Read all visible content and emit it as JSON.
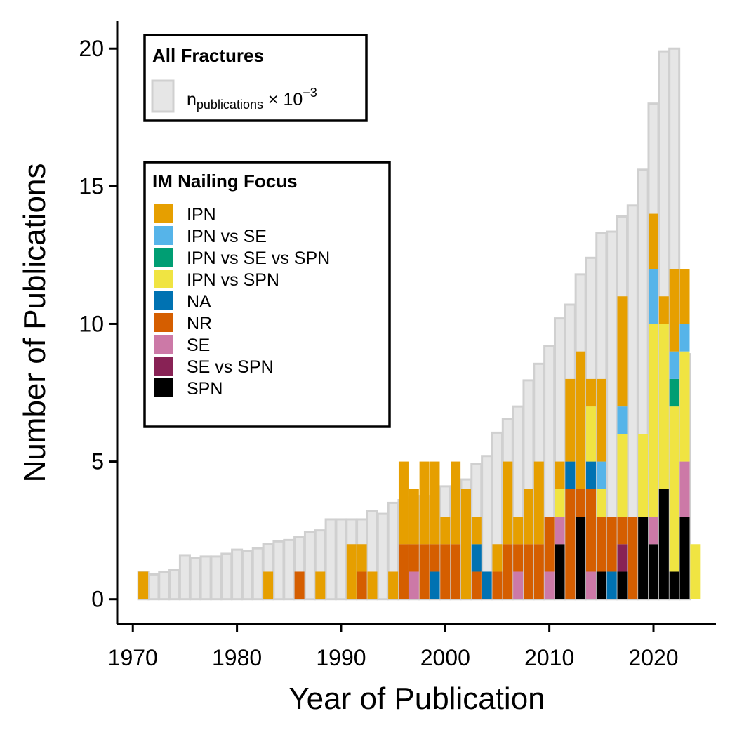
{
  "chart_data": {
    "type": "bar",
    "xlabel": "Year of Publication",
    "ylabel": "Number of Publications",
    "xlim": [
      1968.5,
      2026
    ],
    "ylim": [
      -0.9,
      21
    ],
    "x_ticks": [
      1970,
      1980,
      1990,
      2000,
      2010,
      2020
    ],
    "x_tick_labels": [
      "1970",
      "1980",
      "1990",
      "2000",
      "2010",
      "2020"
    ],
    "y_ticks": [
      0,
      5,
      10,
      15,
      20
    ],
    "y_tick_labels": [
      "0",
      "5",
      "10",
      "15",
      "20"
    ],
    "grid": false,
    "background_series": {
      "legend_title": "All Fractures",
      "label_main": "n",
      "label_sub": "publications",
      "label_times": " × 10",
      "label_exp": "−3",
      "fill": "#e6e6e6",
      "stroke": "#d0d0d0",
      "years": [
        1971,
        1972,
        1973,
        1974,
        1975,
        1976,
        1977,
        1978,
        1979,
        1980,
        1981,
        1982,
        1983,
        1984,
        1985,
        1986,
        1987,
        1988,
        1989,
        1990,
        1991,
        1992,
        1993,
        1994,
        1995,
        1996,
        1997,
        1998,
        1999,
        2000,
        2001,
        2002,
        2003,
        2004,
        2005,
        2006,
        2007,
        2008,
        2009,
        2010,
        2011,
        2012,
        2013,
        2014,
        2015,
        2016,
        2017,
        2018,
        2019,
        2020,
        2021,
        2022,
        2023
      ],
      "values": [
        1.0,
        0.9,
        1.0,
        1.05,
        1.6,
        1.5,
        1.55,
        1.55,
        1.65,
        1.8,
        1.75,
        1.85,
        2.0,
        2.1,
        2.15,
        2.25,
        2.45,
        2.5,
        2.9,
        2.9,
        2.9,
        2.9,
        3.2,
        3.1,
        3.5,
        3.6,
        3.7,
        3.75,
        3.65,
        4.1,
        4.1,
        4.35,
        4.9,
        5.2,
        6.05,
        6.55,
        7.0,
        7.95,
        8.55,
        9.2,
        10.2,
        10.7,
        11.8,
        12.4,
        13.3,
        13.35,
        13.9,
        14.3,
        15.6,
        18.0,
        19.9,
        20.0,
        8.9
      ]
    },
    "legend_title": "IM Nailing Focus",
    "categories": [
      "IPN",
      "IPN vs SE",
      "IPN vs SE vs SPN",
      "IPN vs SPN",
      "NA",
      "NR",
      "SE",
      "SE vs SPN",
      "SPN"
    ],
    "colors": {
      "IPN": "#E69F00",
      "IPN vs SE": "#56B4E9",
      "IPN vs SE vs SPN": "#009E73",
      "IPN vs SPN": "#F0E442",
      "NA": "#0072B2",
      "NR": "#D55E00",
      "SE": "#CC79A7",
      "SE vs SPN": "#882255",
      "SPN": "#000000"
    },
    "stacked_bars": [
      {
        "year": 1971,
        "stack": [
          [
            "IPN",
            1
          ]
        ]
      },
      {
        "year": 1983,
        "stack": [
          [
            "IPN",
            1
          ]
        ]
      },
      {
        "year": 1986,
        "stack": [
          [
            "NR",
            1
          ]
        ]
      },
      {
        "year": 1988,
        "stack": [
          [
            "IPN",
            1
          ]
        ]
      },
      {
        "year": 1991,
        "stack": [
          [
            "IPN",
            2
          ]
        ]
      },
      {
        "year": 1992,
        "stack": [
          [
            "NR",
            1
          ],
          [
            "IPN",
            1
          ]
        ]
      },
      {
        "year": 1993,
        "stack": [
          [
            "IPN",
            1
          ]
        ]
      },
      {
        "year": 1995,
        "stack": [
          [
            "IPN",
            1
          ]
        ]
      },
      {
        "year": 1996,
        "stack": [
          [
            "NR",
            2
          ],
          [
            "IPN",
            3
          ]
        ]
      },
      {
        "year": 1997,
        "stack": [
          [
            "SE",
            1
          ],
          [
            "NR",
            1
          ],
          [
            "IPN",
            2
          ]
        ]
      },
      {
        "year": 1998,
        "stack": [
          [
            "NR",
            2
          ],
          [
            "IPN",
            3
          ]
        ]
      },
      {
        "year": 1999,
        "stack": [
          [
            "NA",
            1
          ],
          [
            "NR",
            1
          ],
          [
            "IPN",
            3
          ]
        ]
      },
      {
        "year": 2000,
        "stack": [
          [
            "NR",
            2
          ],
          [
            "IPN",
            1
          ]
        ]
      },
      {
        "year": 2001,
        "stack": [
          [
            "NR",
            2
          ],
          [
            "IPN",
            3
          ]
        ]
      },
      {
        "year": 2002,
        "stack": [
          [
            "IPN",
            4
          ]
        ]
      },
      {
        "year": 2003,
        "stack": [
          [
            "NR",
            1
          ],
          [
            "NA",
            1
          ],
          [
            "IPN",
            1
          ]
        ]
      },
      {
        "year": 2004,
        "stack": [
          [
            "NA",
            1
          ]
        ]
      },
      {
        "year": 2005,
        "stack": [
          [
            "NR",
            1
          ],
          [
            "IPN",
            1
          ]
        ]
      },
      {
        "year": 2006,
        "stack": [
          [
            "NR",
            2
          ],
          [
            "IPN",
            3
          ]
        ]
      },
      {
        "year": 2007,
        "stack": [
          [
            "SE",
            1
          ],
          [
            "NR",
            1
          ],
          [
            "IPN",
            1
          ]
        ]
      },
      {
        "year": 2008,
        "stack": [
          [
            "NR",
            2
          ],
          [
            "IPN",
            2
          ]
        ]
      },
      {
        "year": 2009,
        "stack": [
          [
            "NR",
            2
          ],
          [
            "IPN",
            3
          ]
        ]
      },
      {
        "year": 2010,
        "stack": [
          [
            "SE",
            1
          ],
          [
            "NR",
            2
          ]
        ]
      },
      {
        "year": 2011,
        "stack": [
          [
            "SPN",
            2
          ],
          [
            "SE",
            1
          ],
          [
            "IPN vs SPN",
            1
          ],
          [
            "IPN",
            1
          ]
        ]
      },
      {
        "year": 2012,
        "stack": [
          [
            "NR",
            4
          ],
          [
            "NA",
            1
          ],
          [
            "IPN",
            3
          ]
        ]
      },
      {
        "year": 2013,
        "stack": [
          [
            "SPN",
            3
          ],
          [
            "NR",
            1
          ],
          [
            "IPN",
            5
          ]
        ]
      },
      {
        "year": 2014,
        "stack": [
          [
            "SE",
            1
          ],
          [
            "NR",
            3
          ],
          [
            "NA",
            1
          ],
          [
            "IPN vs SPN",
            2
          ],
          [
            "IPN",
            1
          ]
        ]
      },
      {
        "year": 2015,
        "stack": [
          [
            "SPN",
            1
          ],
          [
            "NR",
            2
          ],
          [
            "IPN vs SPN",
            1
          ],
          [
            "IPN vs SE",
            1
          ],
          [
            "IPN",
            3
          ]
        ]
      },
      {
        "year": 2016,
        "stack": [
          [
            "NA",
            1
          ],
          [
            "NR",
            2
          ]
        ]
      },
      {
        "year": 2017,
        "stack": [
          [
            "SPN",
            1
          ],
          [
            "SE vs SPN",
            1
          ],
          [
            "NR",
            1
          ],
          [
            "IPN vs SPN",
            3
          ],
          [
            "IPN vs SE",
            1
          ],
          [
            "IPN",
            4
          ]
        ]
      },
      {
        "year": 2018,
        "stack": [
          [
            "NR",
            3
          ]
        ]
      },
      {
        "year": 2019,
        "stack": [
          [
            "SPN",
            3
          ],
          [
            "IPN vs SPN",
            3
          ]
        ]
      },
      {
        "year": 2020,
        "stack": [
          [
            "SPN",
            2
          ],
          [
            "SE",
            1
          ],
          [
            "IPN vs SPN",
            7
          ],
          [
            "IPN vs SE",
            2
          ],
          [
            "IPN",
            2
          ]
        ]
      },
      {
        "year": 2021,
        "stack": [
          [
            "SPN",
            4
          ],
          [
            "IPN vs SPN",
            6
          ],
          [
            "IPN",
            1
          ]
        ]
      },
      {
        "year": 2022,
        "stack": [
          [
            "SPN",
            1
          ],
          [
            "IPN vs SPN",
            6
          ],
          [
            "IPN vs SE vs SPN",
            1
          ],
          [
            "IPN vs SE",
            1
          ],
          [
            "IPN",
            3
          ]
        ]
      },
      {
        "year": 2023,
        "stack": [
          [
            "SPN",
            3
          ],
          [
            "SE",
            2
          ],
          [
            "IPN vs SPN",
            4
          ],
          [
            "IPN vs SE",
            1
          ],
          [
            "IPN",
            2
          ]
        ]
      },
      {
        "year": 2024,
        "stack": [
          [
            "IPN vs SPN",
            2
          ]
        ]
      }
    ]
  }
}
